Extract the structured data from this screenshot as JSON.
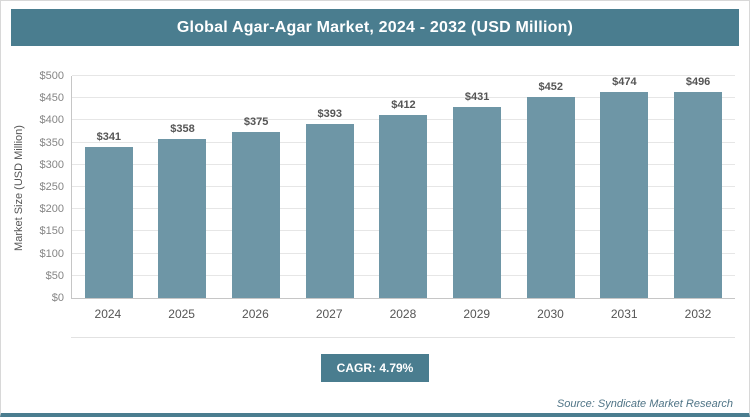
{
  "chart_data": {
    "type": "bar",
    "title": "Global Agar-Agar Market, 2024 - 2032 (USD Million)",
    "categories": [
      "2024",
      "2025",
      "2026",
      "2027",
      "2028",
      "2029",
      "2030",
      "2031",
      "2032"
    ],
    "values": [
      341,
      358,
      375,
      393,
      412,
      431,
      452,
      474,
      496
    ],
    "xlabel": "",
    "ylabel": "Market Size (USD Million)",
    "ylim": [
      0,
      500
    ],
    "ytick_step": 50,
    "value_prefix": "$",
    "grid": "horizontal",
    "legend": "none",
    "bar_color": "#6e96a6",
    "accent_color": "#4a7d8f"
  },
  "footer": {
    "cagr_label": "CAGR: 4.79%",
    "source": "Source: Syndicate Market Research"
  }
}
